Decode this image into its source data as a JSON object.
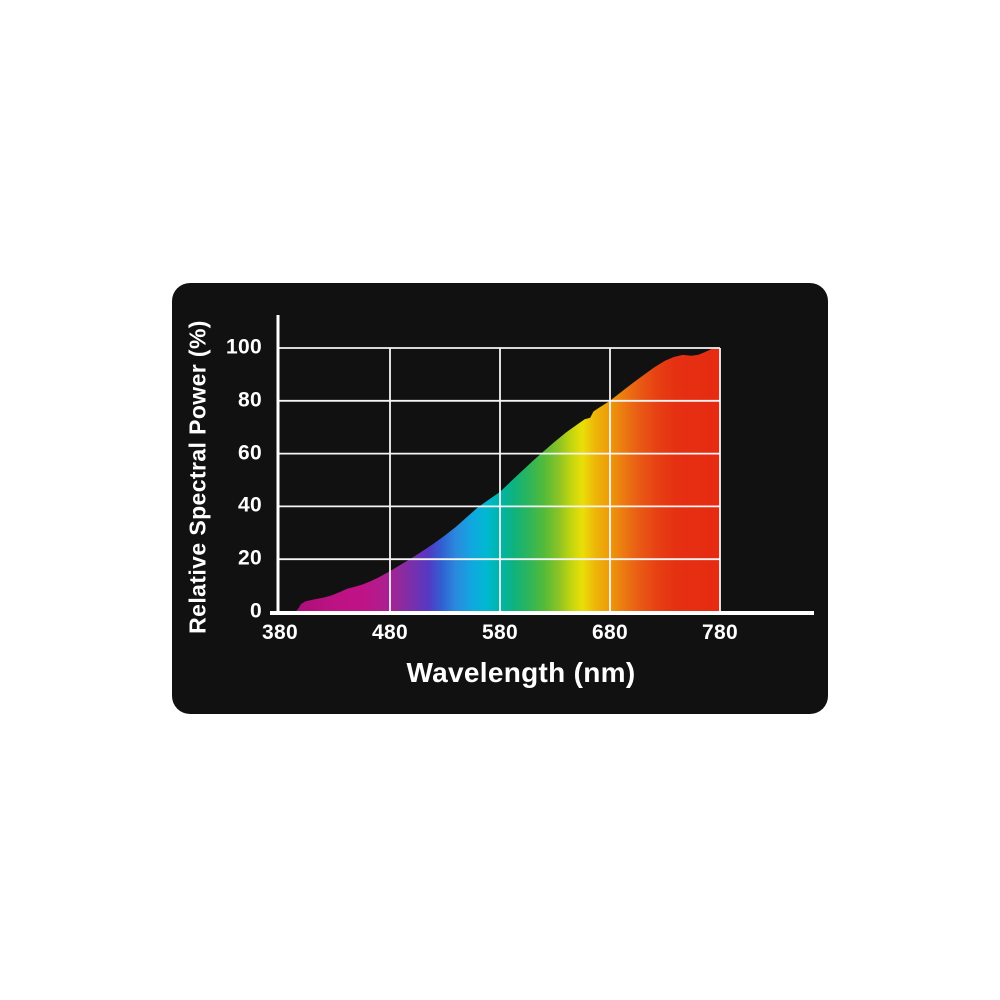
{
  "colors": {
    "page_background": "#ffffff",
    "card_background": "#111111",
    "axis_color": "#ffffff",
    "grid_color": "#f5f5f5",
    "text_color": "#ffffff"
  },
  "chart_data": {
    "type": "area",
    "title": "",
    "series_name": "Relative Spectral Power",
    "xlabel": "Wavelength (nm)",
    "ylabel": "Relative Spectral Power (%)",
    "xlim": [
      380,
      780
    ],
    "ylim": [
      0,
      100
    ],
    "x_ticks": [
      380,
      480,
      580,
      680,
      780
    ],
    "y_ticks": [
      0,
      20,
      40,
      60,
      80,
      100
    ],
    "grid": true,
    "legend": false,
    "fill_style": "visible-light-spectrum-gradient",
    "points": [
      [
        380,
        0
      ],
      [
        394,
        0
      ],
      [
        397,
        1.5
      ],
      [
        399,
        3
      ],
      [
        403,
        4
      ],
      [
        408,
        4.5
      ],
      [
        414,
        5
      ],
      [
        420,
        5.5
      ],
      [
        427,
        6.3
      ],
      [
        434,
        7.5
      ],
      [
        441,
        8.8
      ],
      [
        448,
        9.6
      ],
      [
        455,
        10.4
      ],
      [
        462,
        11.6
      ],
      [
        470,
        13.2
      ],
      [
        480,
        15.5
      ],
      [
        490,
        18
      ],
      [
        500,
        20.5
      ],
      [
        510,
        23.2
      ],
      [
        520,
        26
      ],
      [
        530,
        29
      ],
      [
        540,
        32.3
      ],
      [
        550,
        36
      ],
      [
        560,
        39.7
      ],
      [
        570,
        42.6
      ],
      [
        580,
        45.5
      ],
      [
        590,
        49.5
      ],
      [
        600,
        53.4
      ],
      [
        610,
        57.3
      ],
      [
        620,
        61
      ],
      [
        630,
        64.6
      ],
      [
        640,
        68
      ],
      [
        650,
        71
      ],
      [
        657,
        73
      ],
      [
        662,
        73.6
      ],
      [
        665,
        76
      ],
      [
        670,
        77.4
      ],
      [
        680,
        80
      ],
      [
        690,
        83.3
      ],
      [
        700,
        86.5
      ],
      [
        710,
        89.6
      ],
      [
        720,
        92.6
      ],
      [
        730,
        95.2
      ],
      [
        738,
        96.6
      ],
      [
        746,
        97.4
      ],
      [
        754,
        97.1
      ],
      [
        760,
        97.4
      ],
      [
        766,
        98.4
      ],
      [
        772,
        99.6
      ],
      [
        777,
        100
      ],
      [
        780,
        100
      ]
    ],
    "spectrum_stops": [
      {
        "wavelength": 380,
        "color": "#9a0d6e"
      },
      {
        "wavelength": 398,
        "color": "#ad0f79"
      },
      {
        "wavelength": 425,
        "color": "#bb1282"
      },
      {
        "wavelength": 455,
        "color": "#c01287"
      },
      {
        "wavelength": 475,
        "color": "#ae1f8f"
      },
      {
        "wavelength": 490,
        "color": "#8f2a9e"
      },
      {
        "wavelength": 505,
        "color": "#6f32b2"
      },
      {
        "wavelength": 515,
        "color": "#5439c4"
      },
      {
        "wavelength": 527,
        "color": "#3160d2"
      },
      {
        "wavelength": 540,
        "color": "#2b8ade"
      },
      {
        "wavelength": 555,
        "color": "#10a8e0"
      },
      {
        "wavelength": 568,
        "color": "#00b9d0"
      },
      {
        "wavelength": 580,
        "color": "#00b4a8"
      },
      {
        "wavelength": 593,
        "color": "#10b27c"
      },
      {
        "wavelength": 606,
        "color": "#2db55b"
      },
      {
        "wavelength": 620,
        "color": "#54ba3a"
      },
      {
        "wavelength": 633,
        "color": "#8ac326"
      },
      {
        "wavelength": 645,
        "color": "#c4d510"
      },
      {
        "wavelength": 655,
        "color": "#eadf08"
      },
      {
        "wavelength": 666,
        "color": "#edb808"
      },
      {
        "wavelength": 678,
        "color": "#ed9d0a"
      },
      {
        "wavelength": 692,
        "color": "#ec7b10"
      },
      {
        "wavelength": 706,
        "color": "#e95c14"
      },
      {
        "wavelength": 722,
        "color": "#e74113"
      },
      {
        "wavelength": 740,
        "color": "#e63012"
      },
      {
        "wavelength": 780,
        "color": "#e52b11"
      }
    ]
  }
}
